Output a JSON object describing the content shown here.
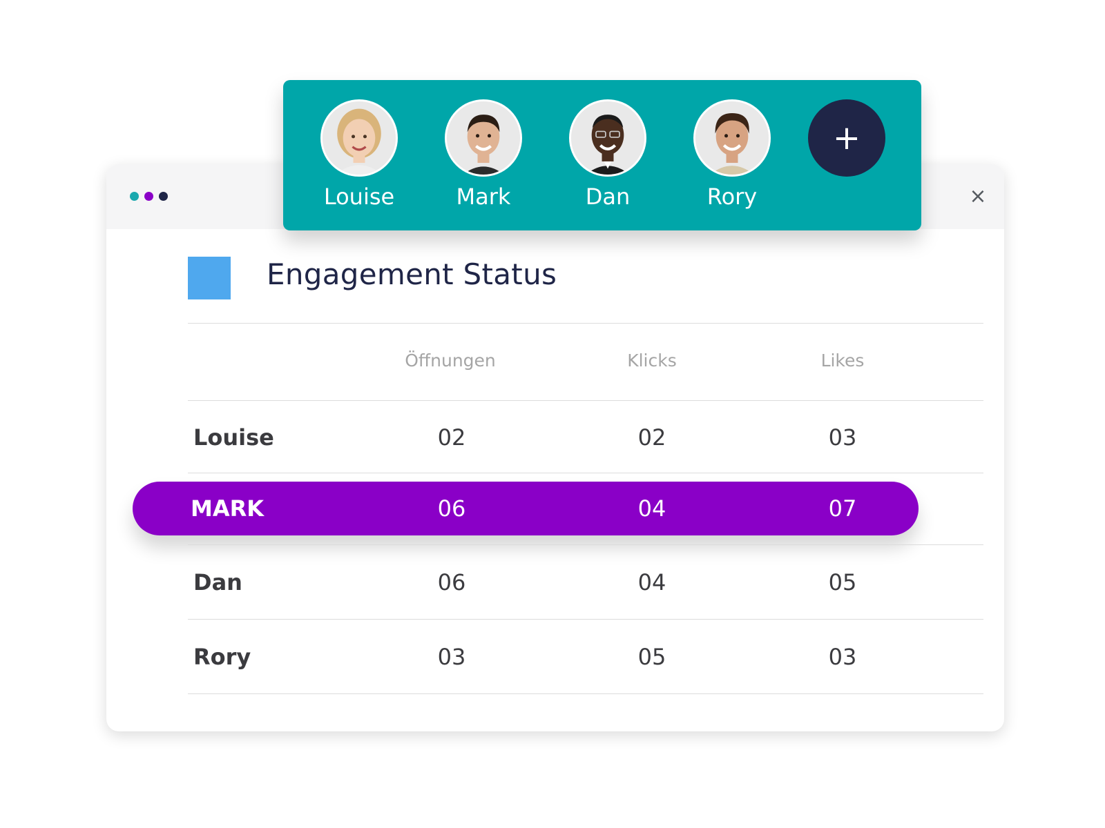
{
  "colors": {
    "teal": "#00a6a9",
    "purple": "#8a00c7",
    "navy": "#1f2547",
    "blue_square": "#4fa8ee"
  },
  "window": {
    "dots": [
      {
        "color": "#1aa8ae"
      },
      {
        "color": "#8a00c7"
      },
      {
        "color": "#1f2547"
      }
    ],
    "close_icon": "×"
  },
  "team_bar": {
    "members": [
      {
        "name": "Louise",
        "avatar_icon": "avatar-louise"
      },
      {
        "name": "Mark",
        "avatar_icon": "avatar-mark"
      },
      {
        "name": "Dan",
        "avatar_icon": "avatar-dan"
      },
      {
        "name": "Rory",
        "avatar_icon": "avatar-rory"
      }
    ],
    "add_label": "+"
  },
  "main": {
    "title": "Engagement Status",
    "columns": [
      "Öffnungen",
      "Klicks",
      "Likes"
    ],
    "rows": [
      {
        "name": "Louise",
        "values": [
          "02",
          "02",
          "03"
        ]
      },
      {
        "name": "MARK",
        "values": [
          "06",
          "04",
          "07"
        ]
      },
      {
        "name": "Dan",
        "values": [
          "06",
          "04",
          "05"
        ]
      },
      {
        "name": "Rory",
        "values": [
          "03",
          "05",
          "03"
        ]
      }
    ]
  }
}
